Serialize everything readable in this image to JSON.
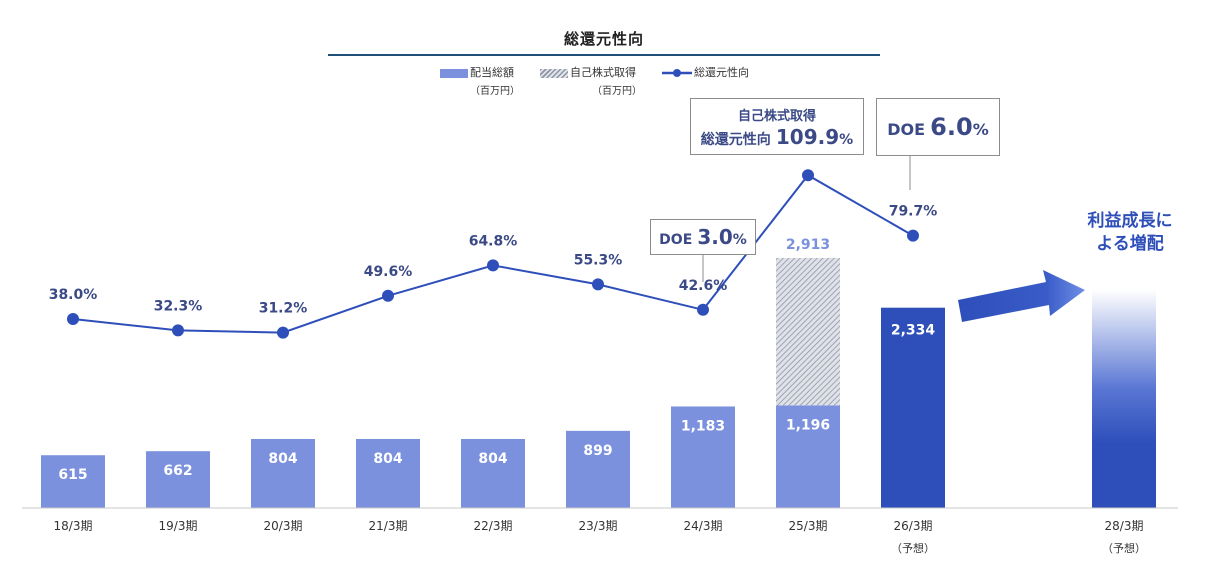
{
  "chart_data": {
    "type": "bar",
    "title": "総還元性向",
    "categories": [
      "18/3期",
      "19/3期",
      "20/3期",
      "21/3期",
      "22/3期",
      "23/3期",
      "24/3期",
      "25/3期",
      "26/3期",
      "28/3期"
    ],
    "category_sublabels": [
      "",
      "",
      "",
      "",
      "",
      "",
      "",
      "",
      "（予想）",
      "（予想）"
    ],
    "series": [
      {
        "name": "配当総額",
        "unit": "（百万円）",
        "values": [
          615,
          662,
          804,
          804,
          804,
          899,
          1183,
          1196,
          2334,
          null
        ]
      },
      {
        "name": "自己株式取得",
        "unit": "（百万円）",
        "values": [
          null,
          null,
          null,
          null,
          null,
          null,
          null,
          1717,
          null,
          null
        ],
        "total_labels": {
          "25/3期": "2,913"
        }
      },
      {
        "name": "総還元性向",
        "type": "line",
        "unit": "%",
        "values": [
          38.0,
          32.3,
          31.2,
          49.6,
          64.8,
          55.3,
          42.6,
          109.9,
          79.7,
          null
        ]
      }
    ],
    "bar_labels": [
      "615",
      "662",
      "804",
      "804",
      "804",
      "899",
      "1,183",
      "1,196",
      "2,334",
      ""
    ],
    "line_labels": [
      "38.0%",
      "32.3%",
      "31.2%",
      "49.6%",
      "64.8%",
      "55.3%",
      "42.6%",
      "",
      "79.7%",
      ""
    ],
    "callouts": [
      {
        "category": "24/3期",
        "label": "DOE",
        "value": "3.0",
        "unit": "%"
      },
      {
        "category": "25/3期",
        "line1": "自己株式取得",
        "label": "総還元性向",
        "value": "109.9",
        "unit": "%"
      },
      {
        "category": "26/3期",
        "label": "DOE",
        "value": "6.0",
        "unit": "%"
      }
    ],
    "annotation": {
      "category": "28/3期",
      "line1": "利益成長に",
      "line2": "よる増配"
    },
    "colors": {
      "dividend": "#7b91de",
      "dividend_forecast": "#2e4fba",
      "buyback": "#a9b0bf",
      "line": "#2e4fba",
      "buyback_label": "#7b91de"
    }
  }
}
